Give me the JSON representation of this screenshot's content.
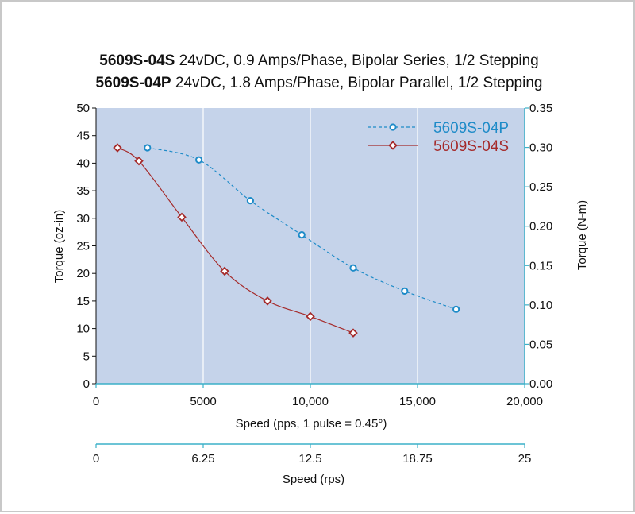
{
  "title_lines": [
    {
      "model": "5609S-04S",
      "rest": " 24vDC, 0.9 Amps/Phase, Bipolar Series, 1/2 Stepping"
    },
    {
      "model": "5609S-04P",
      "rest": " 24vDC, 1.8 Amps/Phase, Bipolar Parallel, 1/2 Stepping"
    }
  ],
  "colors": {
    "plot_background": "#c5d3ea",
    "gridline": "#ffffff",
    "series_p": "#1e8bc8",
    "series_s": "#a52a2a",
    "right_axis": "#3bb0c8",
    "bottom_axis": "#3bb0c8"
  },
  "chart_data": {
    "type": "line",
    "x_axis": {
      "label": "Speed (pps, 1 pulse = 0.45°)",
      "range": [
        0,
        20000
      ],
      "ticks": [
        0,
        5000,
        10000,
        15000,
        20000
      ],
      "tick_labels": [
        "0",
        "5000",
        "10,000",
        "15,000",
        "20,000"
      ]
    },
    "x_axis_secondary": {
      "label": "Speed (rps)",
      "range": [
        0,
        25
      ],
      "tick_labels": [
        "0",
        "6.25",
        "12.5",
        "18.75",
        "25"
      ]
    },
    "y_axis_left": {
      "label": "Torque (oz-in)",
      "range": [
        0,
        50
      ],
      "ticks": [
        0,
        5,
        10,
        15,
        20,
        25,
        30,
        35,
        40,
        45,
        50
      ],
      "tick_labels": [
        "0",
        "5",
        "10",
        "15",
        "20",
        "25",
        "30",
        "35",
        "40",
        "45",
        "50"
      ]
    },
    "y_axis_right": {
      "label": "Torque (N-m)",
      "range": [
        0,
        0.35
      ],
      "tick_labels": [
        "0.00",
        "0.05",
        "0.10",
        "0.15",
        "0.20",
        "0.25",
        "0.30",
        "0.35"
      ]
    },
    "grid": true,
    "legend_position": "top-right",
    "series": [
      {
        "name": "5609S-04P",
        "line_style": "dashed",
        "marker": "circle",
        "x": [
          2400,
          4800,
          7200,
          9600,
          12000,
          14400,
          16800
        ],
        "y": [
          42.8,
          40.6,
          33.2,
          27.0,
          21.0,
          16.8,
          13.5
        ]
      },
      {
        "name": "5609S-04S",
        "line_style": "solid",
        "marker": "diamond",
        "x": [
          1000,
          2000,
          4000,
          6000,
          8000,
          10000,
          12000
        ],
        "y": [
          42.8,
          40.4,
          30.2,
          20.4,
          15.0,
          12.2,
          9.2
        ]
      }
    ]
  }
}
